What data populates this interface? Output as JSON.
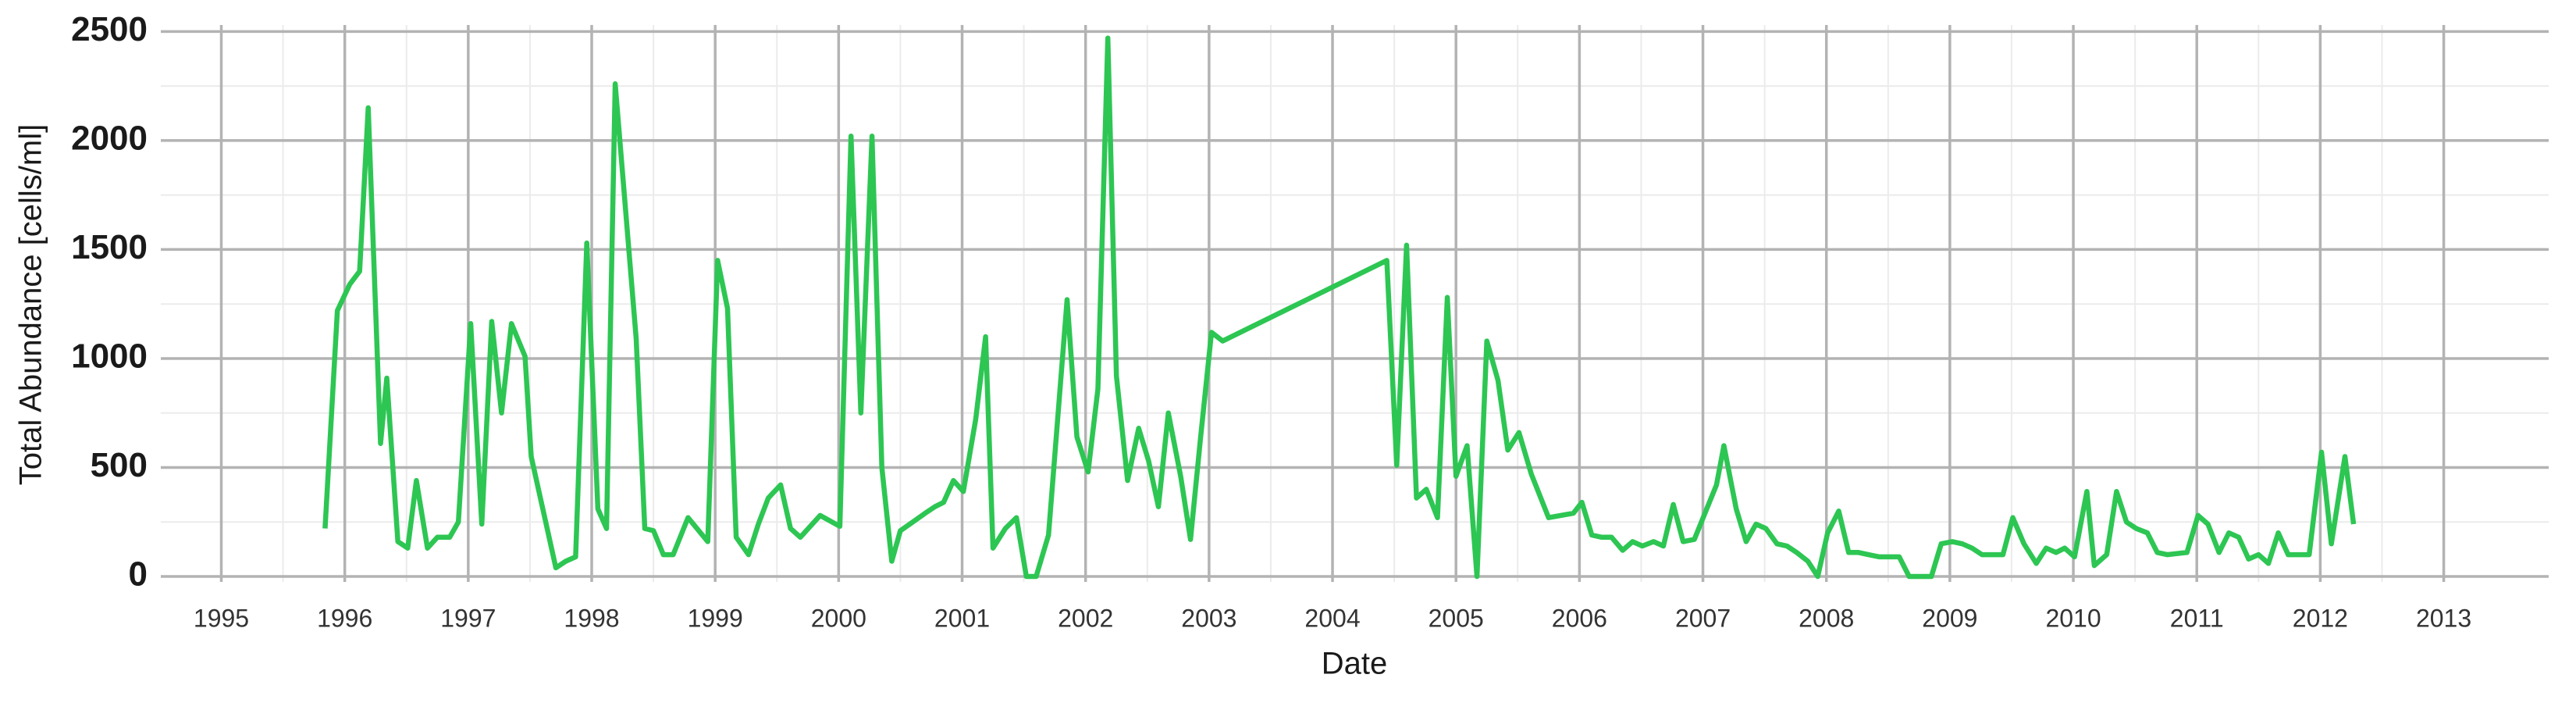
{
  "chart_data": {
    "type": "line",
    "x_label": "Date",
    "y_label": "Total Abundance [cells/ml]",
    "x": [
      1995.84,
      1995.94,
      1996.04,
      1996.12,
      1996.19,
      1996.29,
      1996.34,
      1996.43,
      1996.51,
      1996.58,
      1996.67,
      1996.75,
      1996.85,
      1996.92,
      1997.02,
      1997.11,
      1997.19,
      1997.27,
      1997.35,
      1997.46,
      1997.51,
      1997.71,
      1997.79,
      1997.87,
      1997.96,
      1998.05,
      1998.12,
      1998.19,
      1998.36,
      1998.43,
      1998.5,
      1998.58,
      1998.66,
      1998.78,
      1998.94,
      1999.02,
      1999.1,
      1999.17,
      1999.27,
      1999.35,
      1999.43,
      1999.53,
      1999.61,
      1999.69,
      1999.85,
      2000.01,
      2000.1,
      2000.18,
      2000.27,
      2000.35,
      2000.43,
      2000.5,
      2000.6,
      2000.7,
      2000.78,
      2000.85,
      2000.93,
      2001.01,
      2001.11,
      2001.19,
      2001.25,
      2001.35,
      2001.44,
      2001.52,
      2001.6,
      2001.7,
      2001.85,
      2001.93,
      2002.02,
      2002.1,
      2002.18,
      2002.25,
      2002.34,
      2002.43,
      2002.51,
      2002.59,
      2002.67,
      2002.77,
      2002.85,
      2002.93,
      2003.02,
      2003.11,
      2004.44,
      2004.52,
      2004.6,
      2004.68,
      2004.76,
      2004.85,
      2004.93,
      2005.0,
      2005.09,
      2005.17,
      2005.25,
      2005.34,
      2005.42,
      2005.51,
      2005.61,
      2005.75,
      2005.95,
      2006.02,
      2006.1,
      2006.18,
      2006.26,
      2006.35,
      2006.43,
      2006.51,
      2006.6,
      2006.68,
      2006.76,
      2006.84,
      2006.93,
      2007.11,
      2007.17,
      2007.27,
      2007.35,
      2007.43,
      2007.51,
      2007.6,
      2007.68,
      2007.76,
      2007.85,
      2007.93,
      2008.01,
      2008.1,
      2008.18,
      2008.26,
      2008.34,
      2008.43,
      2008.59,
      2008.67,
      2008.77,
      2008.85,
      2008.93,
      2009.02,
      2009.1,
      2009.18,
      2009.26,
      2009.43,
      2009.51,
      2009.6,
      2009.7,
      2009.78,
      2009.86,
      2009.93,
      2010.01,
      2010.11,
      2010.17,
      2010.27,
      2010.35,
      2010.43,
      2010.51,
      2010.6,
      2010.68,
      2010.76,
      2010.92,
      2011.01,
      2011.09,
      2011.18,
      2011.26,
      2011.34,
      2011.42,
      2011.5,
      2011.58,
      2011.66,
      2011.74,
      2011.91,
      2012.01,
      2012.09,
      2012.2,
      2012.27
    ],
    "series": [
      {
        "color": "#2dc653",
        "values": [
          220,
          1220,
          1340,
          1400,
          2150,
          610,
          910,
          160,
          130,
          440,
          130,
          180,
          180,
          250,
          1160,
          240,
          1170,
          750,
          1160,
          1010,
          550,
          40,
          70,
          90,
          1530,
          310,
          220,
          2260,
          1090,
          220,
          210,
          100,
          100,
          270,
          160,
          1450,
          1230,
          180,
          100,
          240,
          360,
          420,
          220,
          180,
          280,
          230,
          2020,
          750,
          2020,
          500,
          70,
          210,
          250,
          290,
          320,
          340,
          440,
          390,
          720,
          1100,
          130,
          220,
          270,
          0,
          0,
          190,
          1270,
          640,
          480,
          860,
          2470,
          920,
          440,
          680,
          530,
          320,
          750,
          460,
          170,
          630,
          1120,
          1080,
          1450,
          510,
          1520,
          360,
          400,
          270,
          1280,
          460,
          600,
          0,
          1080,
          900,
          580,
          660,
          470,
          270,
          290,
          340,
          190,
          180,
          180,
          120,
          160,
          140,
          160,
          140,
          330,
          160,
          170,
          420,
          600,
          310,
          160,
          240,
          220,
          150,
          140,
          110,
          70,
          0,
          200,
          300,
          110,
          110,
          100,
          90,
          90,
          0,
          0,
          0,
          150,
          160,
          150,
          130,
          100,
          100,
          270,
          150,
          60,
          130,
          110,
          130,
          90,
          390,
          50,
          100,
          390,
          250,
          220,
          200,
          110,
          100,
          110,
          280,
          240,
          110,
          200,
          180,
          80,
          100,
          60,
          200,
          100,
          100,
          570,
          150,
          550,
          240
        ]
      }
    ],
    "xlim": [
      1994.51,
      2013.85
    ],
    "xticks": [
      1995,
      1996,
      1997,
      1998,
      1999,
      2000,
      2001,
      2002,
      2003,
      2004,
      2005,
      2006,
      2007,
      2008,
      2009,
      2010,
      2011,
      2012,
      2013
    ],
    "ylim": [
      -25,
      2530
    ],
    "yticks": [
      0,
      500,
      1000,
      1500,
      2000,
      2500
    ],
    "grid": true
  }
}
